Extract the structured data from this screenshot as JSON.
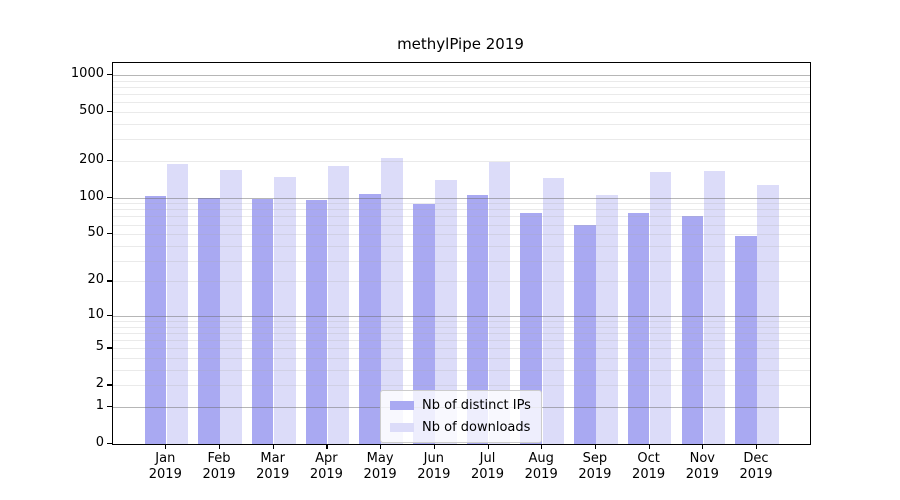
{
  "chart_data": {
    "type": "bar",
    "title": "methylPipe 2019",
    "categories": [
      "Jan",
      "Feb",
      "Mar",
      "Apr",
      "May",
      "Jun",
      "Jul",
      "Aug",
      "Sep",
      "Oct",
      "Nov",
      "Dec"
    ],
    "category_year_suffix": "2019",
    "series": [
      {
        "name": "Nb of distinct IPs",
        "color": "#a9a9f2",
        "values": [
          104,
          100,
          97,
          96,
          107,
          88,
          106,
          75,
          59,
          74,
          70,
          48
        ]
      },
      {
        "name": "Nb of downloads",
        "color": "#dcdcf9",
        "values": [
          188,
          169,
          148,
          183,
          212,
          140,
          194,
          144,
          105,
          163,
          164,
          127
        ]
      }
    ],
    "yticks": [
      0,
      1,
      2,
      5,
      10,
      20,
      50,
      100,
      200,
      500,
      1000
    ],
    "scale": "log10(value+1)",
    "ylim": [
      0,
      1255
    ],
    "grid": "both",
    "legend_position": "lower-center",
    "colors": {
      "major_grid": "#6e6e6e",
      "minor_grid": "#aaaaaa",
      "spine": "#000000",
      "background": "#ffffff"
    }
  }
}
